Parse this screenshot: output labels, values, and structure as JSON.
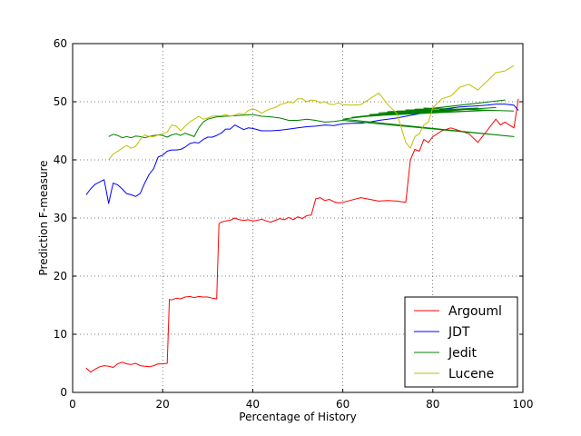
{
  "chart_data": {
    "type": "line",
    "xlabel": "Percentage of History",
    "ylabel": "Prediction F-measure",
    "xlim": [
      0,
      100
    ],
    "ylim": [
      0,
      60
    ],
    "xticks": [
      0,
      20,
      40,
      60,
      80,
      100
    ],
    "yticks": [
      0,
      10,
      20,
      30,
      40,
      50,
      60
    ],
    "grid": true,
    "legend_position": "lower-right",
    "series": [
      {
        "name": "Argouml",
        "color": "#ff0000",
        "x": [
          3,
          4,
          5,
          6,
          7,
          8,
          9,
          10,
          11,
          12,
          13,
          14,
          15,
          16,
          17,
          18,
          19,
          20,
          21,
          21.5,
          22,
          23,
          24,
          25,
          26,
          27,
          28,
          29,
          30,
          31,
          32,
          32.5,
          33,
          34,
          35,
          36,
          37,
          38,
          39,
          40,
          41,
          42,
          43,
          44,
          45,
          46,
          47,
          48,
          49,
          50,
          51,
          52,
          53,
          54,
          55,
          56,
          57,
          58,
          59,
          60,
          62,
          64,
          66,
          68,
          70,
          72,
          74,
          75,
          76,
          77,
          78,
          79,
          80,
          82,
          84,
          86,
          88,
          90,
          92,
          94,
          95,
          96,
          98,
          99
        ],
        "y": [
          4.2,
          3.5,
          4.0,
          4.4,
          4.6,
          4.5,
          4.3,
          4.9,
          5.2,
          4.9,
          4.8,
          5.0,
          4.6,
          4.5,
          4.4,
          4.6,
          4.9,
          4.9,
          5.0,
          16.0,
          15.9,
          16.2,
          16.1,
          16.4,
          16.5,
          16.3,
          16.5,
          16.4,
          16.4,
          16.2,
          16.1,
          29.0,
          29.3,
          29.5,
          29.6,
          30.0,
          29.7,
          29.6,
          29.7,
          29.5,
          29.6,
          29.8,
          29.5,
          29.3,
          29.6,
          29.9,
          29.7,
          30.1,
          29.7,
          30.2,
          29.9,
          30.4,
          30.5,
          33.3,
          33.5,
          33.0,
          33.2,
          32.8,
          32.6,
          32.7,
          33.1,
          33.5,
          33.2,
          32.9,
          33.0,
          32.9,
          32.7,
          40.0,
          41.8,
          41.5,
          43.5,
          43.0,
          44.0,
          45.0,
          45.5,
          45.0,
          44.5,
          43.0,
          45.0,
          47.0,
          46.0,
          46.5,
          45.5,
          50.5
        ]
      },
      {
        "name": "JDT",
        "color": "#0000ff",
        "x": [
          3,
          4,
          5,
          6,
          7,
          8,
          9,
          10,
          11,
          12,
          13,
          14,
          15,
          16,
          17,
          18,
          19,
          20,
          21,
          22,
          23,
          24,
          25,
          26,
          27,
          28,
          29,
          30,
          31,
          32,
          33,
          34,
          35,
          36,
          37,
          38,
          39,
          40,
          42,
          44,
          46,
          48,
          50,
          52,
          54,
          56,
          58,
          60,
          62,
          64,
          66,
          68,
          70,
          72,
          74,
          76,
          78,
          80,
          82,
          84,
          86,
          88,
          90,
          92,
          94,
          96,
          98,
          99
        ],
        "y": [
          34.0,
          35.0,
          35.8,
          36.2,
          36.6,
          32.5,
          36.0,
          35.7,
          35.0,
          34.2,
          34.0,
          33.7,
          34.2,
          36.0,
          37.5,
          38.5,
          40.5,
          40.8,
          41.5,
          41.7,
          41.7,
          41.8,
          42.2,
          42.8,
          43.0,
          42.9,
          43.5,
          43.9,
          43.9,
          44.2,
          44.6,
          45.3,
          45.3,
          46.0,
          45.6,
          45.2,
          45.5,
          45.4,
          45.0,
          45.0,
          45.1,
          45.3,
          45.5,
          45.7,
          45.8,
          46.0,
          45.9,
          46.2,
          46.3,
          46.3,
          46.5,
          46.8,
          47.0,
          47.2,
          47.5,
          47.8,
          48.1,
          48.4,
          48.7,
          48.9,
          49.1,
          49.2,
          49.3,
          49.4,
          49.6,
          49.6,
          49.4,
          48.5
        ]
      },
      {
        "name": "Jedit",
        "color": "#008000",
        "x": [
          8,
          9,
          10,
          11,
          12,
          13,
          14,
          15,
          16,
          17,
          18,
          19,
          20,
          21,
          22,
          23,
          24,
          25,
          26,
          27,
          28,
          29,
          30,
          32,
          34,
          36,
          38,
          40,
          42,
          44,
          46,
          48,
          50,
          52,
          54,
          56,
          58,
          60,
          98,
          60,
          96,
          62,
          94,
          64,
          92,
          66,
          90,
          68,
          88,
          70,
          86,
          72,
          84,
          74,
          82,
          76,
          80,
          78,
          98
        ],
        "y": [
          44.0,
          44.4,
          44.2,
          43.8,
          44.0,
          43.8,
          44.1,
          44.0,
          43.8,
          44.0,
          44.2,
          44.3,
          44.2,
          43.9,
          44.3,
          44.5,
          44.2,
          44.6,
          44.3,
          44.0,
          45.5,
          46.5,
          47.0,
          47.4,
          47.5,
          47.6,
          47.7,
          47.8,
          47.5,
          47.4,
          47.2,
          46.8,
          46.8,
          47.0,
          46.8,
          46.5,
          46.6,
          46.8,
          44.0,
          47.0,
          50.3,
          47.3,
          49.0,
          47.5,
          48.5,
          47.8,
          48.9,
          48.1,
          48.7,
          48.3,
          48.6,
          48.4,
          48.5,
          48.6,
          48.6,
          48.7,
          48.8,
          48.9,
          48.4
        ]
      },
      {
        "name": "Lucene",
        "color": "#bfbf00",
        "x": [
          8,
          9,
          10,
          11,
          12,
          13,
          14,
          15,
          16,
          17,
          18,
          19,
          20,
          21,
          22,
          23,
          24,
          25,
          26,
          27,
          28,
          29,
          30,
          31,
          32,
          33,
          34,
          35,
          36,
          37,
          38,
          39,
          40,
          41,
          42,
          43,
          44,
          45,
          46,
          47,
          48,
          49,
          50,
          51,
          52,
          53,
          54,
          55,
          56,
          57,
          58,
          59,
          60,
          62,
          64,
          66,
          68,
          70,
          72,
          74,
          75,
          76,
          77,
          78,
          79,
          80,
          82,
          84,
          86,
          88,
          90,
          92,
          94,
          96,
          98
        ],
        "y": [
          40.0,
          41.0,
          41.5,
          42.0,
          42.5,
          42.0,
          42.3,
          43.5,
          44.3,
          44.0,
          44.0,
          44.3,
          44.5,
          44.8,
          46.0,
          45.8,
          45.0,
          45.8,
          46.5,
          47.0,
          47.5,
          47.0,
          47.2,
          47.5,
          47.6,
          47.6,
          47.8,
          47.5,
          47.7,
          48.0,
          47.8,
          48.5,
          48.8,
          48.5,
          48.0,
          48.5,
          48.8,
          49.0,
          49.5,
          49.7,
          50.0,
          49.8,
          50.5,
          50.5,
          50.0,
          50.3,
          50.2,
          49.8,
          50.0,
          49.6,
          49.5,
          49.8,
          49.5,
          49.4,
          49.5,
          50.5,
          51.5,
          49.5,
          48.0,
          43.0,
          42.0,
          44.0,
          44.5,
          46.0,
          46.5,
          49.0,
          50.5,
          51.0,
          52.5,
          53.0,
          52.0,
          53.5,
          55.0,
          55.3,
          56.2
        ]
      }
    ]
  }
}
